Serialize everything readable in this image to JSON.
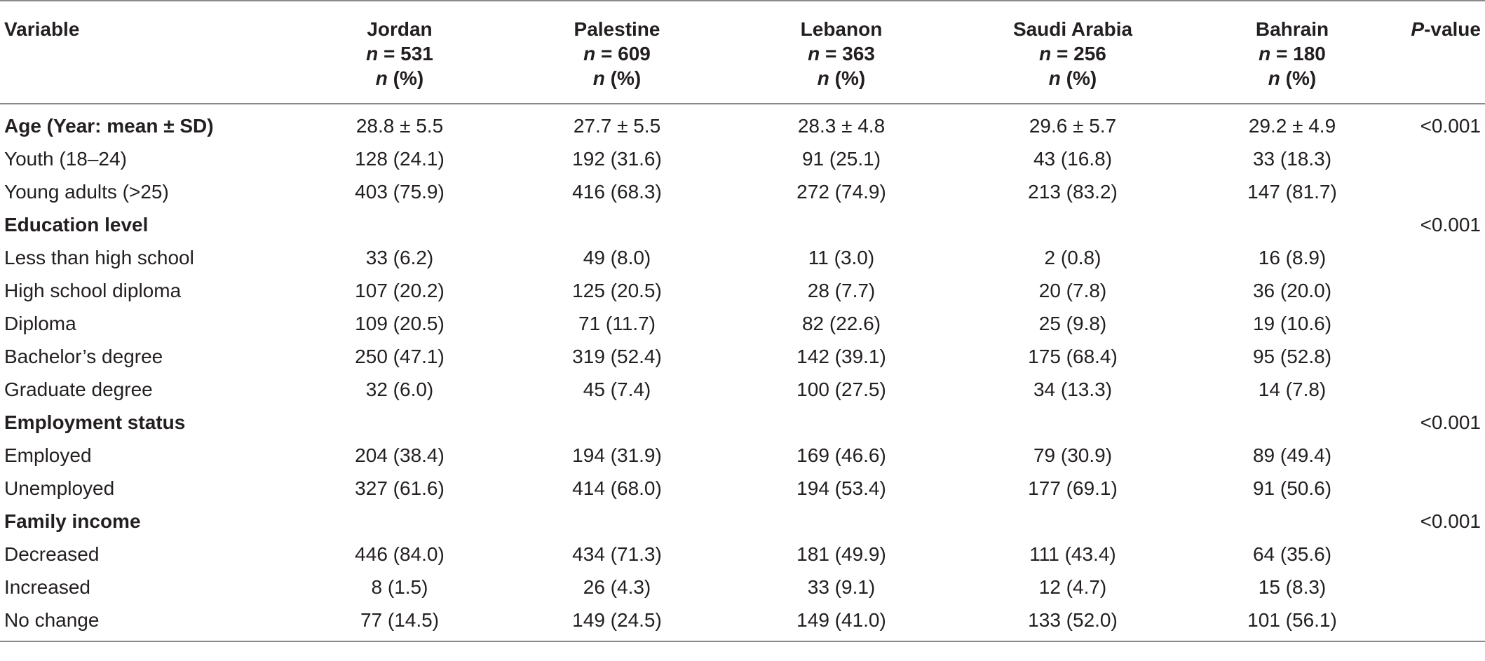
{
  "table": {
    "header": {
      "variable": "Variable",
      "columns": [
        {
          "name": "Jordan",
          "n_label": "n",
          "n_value": " = 531",
          "pct_label": "n",
          "pct_suffix": " (%)"
        },
        {
          "name": "Palestine",
          "n_label": "n",
          "n_value": " = 609",
          "pct_label": "n",
          "pct_suffix": " (%)"
        },
        {
          "name": "Lebanon",
          "n_label": "n",
          "n_value": " = 363",
          "pct_label": "n",
          "pct_suffix": " (%)"
        },
        {
          "name": "Saudi Arabia",
          "n_label": "n",
          "n_value": " = 256",
          "pct_label": "n",
          "pct_suffix": " (%)"
        },
        {
          "name": "Bahrain",
          "n_label": "n",
          "n_value": " = 180",
          "pct_label": "n",
          "pct_suffix": " (%)"
        }
      ],
      "pvalue_italic": "P",
      "pvalue_rest": "-value"
    },
    "rows": [
      {
        "label": "Age (Year: mean ± SD)",
        "values": [
          "28.8 ± 5.5",
          "27.7 ± 5.5",
          "28.3 ± 4.8",
          "29.6 ± 5.7",
          "29.2 ± 4.9"
        ],
        "pvalue": "<0.001"
      },
      {
        "label": "Youth (18–24)",
        "values": [
          "128 (24.1)",
          "192 (31.6)",
          "91 (25.1)",
          "43 (16.8)",
          "33 (18.3)"
        ],
        "pvalue": ""
      },
      {
        "label": "Young adults (>25)",
        "values": [
          "403 (75.9)",
          "416 (68.3)",
          "272 (74.9)",
          "213 (83.2)",
          "147 (81.7)"
        ],
        "pvalue": ""
      },
      {
        "label": "Education level",
        "values": [
          "",
          "",
          "",
          "",
          ""
        ],
        "pvalue": "<0.001"
      },
      {
        "label": "Less than high school",
        "values": [
          "33 (6.2)",
          "49 (8.0)",
          "11 (3.0)",
          "2 (0.8)",
          "16 (8.9)"
        ],
        "pvalue": ""
      },
      {
        "label": "High school diploma",
        "values": [
          "107 (20.2)",
          "125 (20.5)",
          "28 (7.7)",
          "20 (7.8)",
          "36 (20.0)"
        ],
        "pvalue": ""
      },
      {
        "label": "Diploma",
        "values": [
          "109 (20.5)",
          "71 (11.7)",
          "82 (22.6)",
          "25 (9.8)",
          "19 (10.6)"
        ],
        "pvalue": ""
      },
      {
        "label": "Bachelor’s degree",
        "values": [
          "250 (47.1)",
          "319 (52.4)",
          "142 (39.1)",
          "175 (68.4)",
          "95 (52.8)"
        ],
        "pvalue": ""
      },
      {
        "label": "Graduate degree",
        "values": [
          "32 (6.0)",
          "45 (7.4)",
          "100 (27.5)",
          "34 (13.3)",
          "14 (7.8)"
        ],
        "pvalue": ""
      },
      {
        "label": "Employment status",
        "values": [
          "",
          "",
          "",
          "",
          ""
        ],
        "pvalue": "<0.001"
      },
      {
        "label": "Employed",
        "values": [
          "204 (38.4)",
          "194 (31.9)",
          "169 (46.6)",
          "79 (30.9)",
          "89 (49.4)"
        ],
        "pvalue": ""
      },
      {
        "label": "Unemployed",
        "values": [
          "327 (61.6)",
          "414 (68.0)",
          "194 (53.4)",
          "177 (69.1)",
          "91 (50.6)"
        ],
        "pvalue": ""
      },
      {
        "label": "Family income",
        "values": [
          "",
          "",
          "",
          "",
          ""
        ],
        "pvalue": "<0.001"
      },
      {
        "label": "Decreased",
        "values": [
          "446 (84.0)",
          "434 (71.3)",
          "181 (49.9)",
          "111 (43.4)",
          "64 (35.6)"
        ],
        "pvalue": ""
      },
      {
        "label": "Increased",
        "values": [
          "8 (1.5)",
          "26 (4.3)",
          "33 (9.1)",
          "12 (4.7)",
          "15 (8.3)"
        ],
        "pvalue": ""
      },
      {
        "label": "No change",
        "values": [
          "77 (14.5)",
          "149 (24.5)",
          "149 (41.0)",
          "133 (52.0)",
          "101 (56.1)"
        ],
        "pvalue": ""
      }
    ]
  }
}
